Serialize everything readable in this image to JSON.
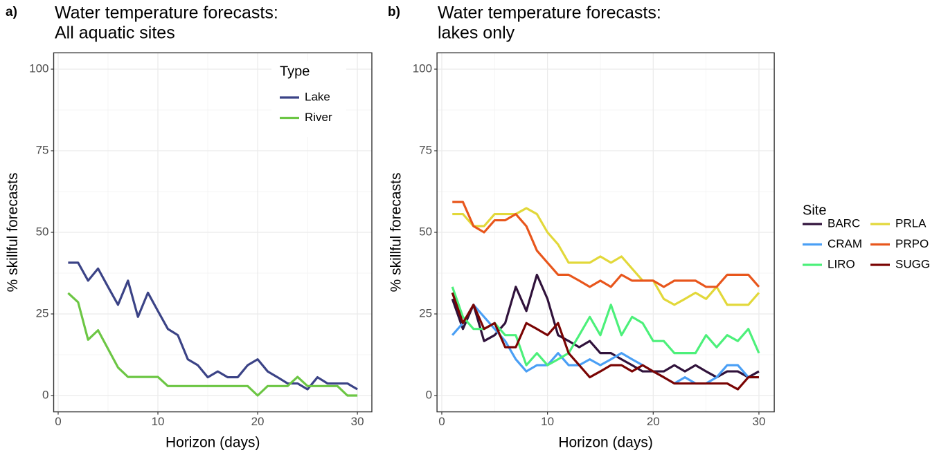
{
  "chart_data": [
    {
      "type": "line",
      "panel_label": "a)",
      "title": [
        "Water temperature forecasts:",
        "All aquatic sites"
      ],
      "x_label": "Horizon (days)",
      "y_label": "% skillful forecasts",
      "x": [
        1,
        2,
        3,
        4,
        5,
        6,
        7,
        8,
        9,
        10,
        11,
        12,
        13,
        14,
        15,
        16,
        17,
        18,
        19,
        20,
        21,
        22,
        23,
        24,
        25,
        26,
        27,
        28,
        29,
        30
      ],
      "series": [
        {
          "name": "Lake",
          "color": "#3b4386",
          "values": [
            40.7,
            40.7,
            35.2,
            38.9,
            33.3,
            27.8,
            35.2,
            24.1,
            31.5,
            25.9,
            20.4,
            18.5,
            11.1,
            9.3,
            5.6,
            7.4,
            5.6,
            5.6,
            9.3,
            11.1,
            7.4,
            5.6,
            3.7,
            3.7,
            1.9,
            5.6,
            3.7,
            3.7,
            3.7,
            1.9
          ]
        },
        {
          "name": "River",
          "color": "#6cc644",
          "values": [
            31.4,
            28.6,
            17.1,
            20,
            14.3,
            8.6,
            5.7,
            5.7,
            5.7,
            5.7,
            2.9,
            2.9,
            2.9,
            2.9,
            2.9,
            2.9,
            2.9,
            2.9,
            2.9,
            0,
            2.9,
            2.9,
            2.9,
            5.7,
            2.9,
            2.9,
            2.9,
            2.9,
            0,
            0
          ]
        }
      ],
      "legend_title": "Type",
      "legend": "top-right",
      "legend_columns": 1,
      "xlim": [
        -0.45,
        31.45
      ],
      "xticks": [
        0,
        10,
        20,
        30
      ],
      "ylim": [
        -5,
        105
      ],
      "yticks": [
        0,
        25,
        50,
        75,
        100
      ],
      "grid": true,
      "minor_grid": true
    },
    {
      "type": "line",
      "panel_label": "b)",
      "title": [
        "Water temperature forecasts:",
        "lakes only"
      ],
      "x_label": "Horizon (days)",
      "y_label": "% skillful forecasts",
      "x": [
        1,
        2,
        3,
        4,
        5,
        6,
        7,
        8,
        9,
        10,
        11,
        12,
        13,
        14,
        15,
        16,
        17,
        18,
        19,
        20,
        21,
        22,
        23,
        24,
        25,
        26,
        27,
        28,
        29,
        30
      ],
      "series": [
        {
          "name": "BARC",
          "color": "#30123b",
          "values": [
            29.6,
            20.4,
            27.8,
            16.7,
            18.5,
            22.2,
            33.3,
            25.9,
            37,
            29.6,
            18.5,
            16.7,
            14.8,
            16.7,
            13,
            13,
            11.1,
            9.3,
            7.4,
            7.4,
            7.4,
            9.3,
            7.4,
            9.3,
            7.4,
            5.6,
            7.4,
            7.4,
            5.6,
            7.4
          ]
        },
        {
          "name": "CRAM",
          "color": "#4a9ff5",
          "values": [
            18.5,
            22.2,
            27.8,
            24.1,
            20.4,
            16.7,
            11.1,
            7.4,
            9.3,
            9.3,
            13,
            9.3,
            9.3,
            11.1,
            9.3,
            11.1,
            13,
            11.1,
            9.3,
            7.4,
            5.6,
            3.7,
            5.6,
            3.7,
            3.7,
            5.6,
            9.3,
            9.3,
            5.6,
            5.6
          ]
        },
        {
          "name": "LIRO",
          "color": "#4cf07a",
          "values": [
            33.3,
            24.1,
            20.4,
            20.4,
            22.2,
            18.5,
            18.5,
            9.3,
            13,
            9.3,
            11.1,
            13,
            18.5,
            24.1,
            18.5,
            27.8,
            18.5,
            24.1,
            22.2,
            16.7,
            16.7,
            13,
            13,
            13,
            18.5,
            14.8,
            18.5,
            16.7,
            20.4,
            13
          ]
        },
        {
          "name": "PRLA",
          "color": "#e2d83a",
          "values": [
            55.6,
            55.6,
            51.9,
            51.9,
            55.6,
            55.6,
            55.6,
            57.4,
            55.6,
            50,
            46.3,
            40.7,
            40.7,
            40.7,
            42.6,
            40.7,
            42.6,
            38.9,
            35.2,
            35.2,
            29.6,
            27.8,
            29.6,
            31.5,
            29.6,
            33.3,
            27.8,
            27.8,
            27.8,
            31.5
          ]
        },
        {
          "name": "PRPO",
          "color": "#e8561c",
          "values": [
            59.3,
            59.3,
            51.9,
            50,
            53.7,
            53.7,
            55.6,
            51.9,
            44.4,
            40.7,
            37,
            37,
            35.2,
            33.3,
            35.2,
            33.3,
            37,
            35.2,
            35.2,
            35.2,
            33.3,
            35.2,
            35.2,
            35.2,
            33.3,
            33.3,
            37,
            37,
            37,
            33.3
          ]
        },
        {
          "name": "SUGG",
          "color": "#7a0403",
          "values": [
            31.5,
            22.2,
            27.8,
            20.4,
            22.2,
            14.8,
            14.8,
            22.2,
            20.4,
            18.5,
            22.2,
            13,
            9.3,
            5.6,
            7.4,
            9.3,
            9.3,
            7.4,
            9.3,
            7.4,
            5.6,
            3.7,
            3.7,
            3.7,
            3.7,
            3.7,
            3.7,
            1.9,
            5.6,
            5.6
          ]
        }
      ],
      "legend_title": "Site",
      "legend": "right",
      "legend_columns": 2,
      "xlim": [
        -0.45,
        31.45
      ],
      "xticks": [
        0,
        10,
        20,
        30
      ],
      "ylim": [
        -5,
        105
      ],
      "yticks": [
        0,
        25,
        50,
        75,
        100
      ],
      "grid": true,
      "minor_grid": true
    }
  ]
}
